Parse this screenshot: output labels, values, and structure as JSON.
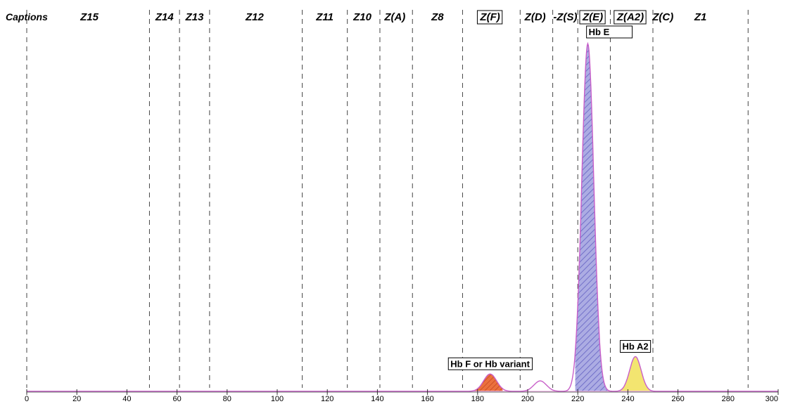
{
  "chart_data": {
    "type": "line",
    "caption_title": "Captions",
    "xlim": [
      0,
      300
    ],
    "x_ticks": [
      0,
      20,
      40,
      60,
      80,
      100,
      120,
      140,
      160,
      180,
      200,
      220,
      240,
      260,
      280,
      300
    ],
    "zone_boundaries": [
      0,
      49,
      61,
      73,
      110,
      128,
      141,
      154,
      174,
      197,
      210,
      220,
      233,
      250,
      288
    ],
    "zones": [
      {
        "label": "Z15",
        "boxed": false,
        "center": 25
      },
      {
        "label": "Z14",
        "boxed": false,
        "center": 55
      },
      {
        "label": "Z13",
        "boxed": false,
        "center": 67
      },
      {
        "label": "Z12",
        "boxed": false,
        "center": 91
      },
      {
        "label": "Z11",
        "boxed": false,
        "center": 119
      },
      {
        "label": "Z10",
        "boxed": false,
        "center": 134
      },
      {
        "label": "Z(A)",
        "boxed": false,
        "center": 147
      },
      {
        "label": "Z8",
        "boxed": false,
        "center": 164
      },
      {
        "label": "Z(F)",
        "boxed": true,
        "center": 185
      },
      {
        "label": "Z(D)",
        "boxed": false,
        "center": 203
      },
      {
        "label": "-Z(S)",
        "boxed": false,
        "center": 215
      },
      {
        "label": "Z(E)",
        "boxed": true,
        "center": 226
      },
      {
        "label": "Z(A2)",
        "boxed": true,
        "center": 241
      },
      {
        "label": "Z(C)",
        "boxed": false,
        "center": 254
      },
      {
        "label": "Z1",
        "boxed": false,
        "center": 269
      }
    ],
    "peaks": [
      {
        "label": "Hb F or Hb variant",
        "center": 185,
        "height": 5,
        "width": 2.6,
        "color": "#e4582a",
        "from": 178,
        "to": 190
      },
      {
        "label": "Hb E",
        "center": 224,
        "height": 100,
        "width": 2.4,
        "color": "#9a93d4",
        "from": 219,
        "to": 233
      },
      {
        "label": "Hb A2",
        "center": 243,
        "height": 10,
        "width": 2.3,
        "color": "#f2e468",
        "from": 237,
        "to": 250
      }
    ],
    "minor_bumps": [
      {
        "center": 205,
        "height": 3,
        "width": 2.5
      }
    ],
    "colors": {
      "curve": "#c85fc9",
      "baseline": "#f0b8e8",
      "zone_line": "#444444"
    }
  }
}
